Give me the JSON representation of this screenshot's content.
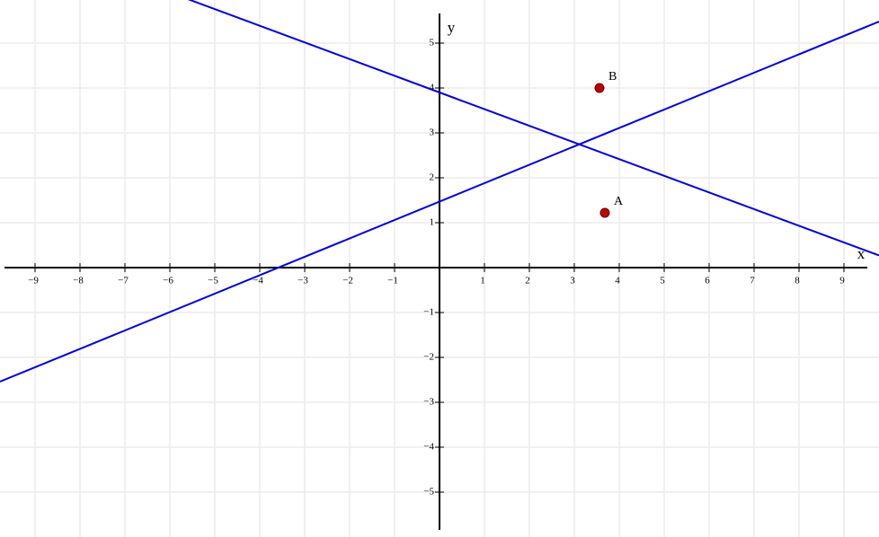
{
  "chart_data": {
    "type": "line",
    "x_label": "x",
    "y_label": "y",
    "xlim": [
      -9.78,
      9.78
    ],
    "ylim": [
      -6,
      5.96
    ],
    "xticks": [
      {
        "value": -9,
        "label": "−9"
      },
      {
        "value": -8,
        "label": "−8"
      },
      {
        "value": -7,
        "label": "−7"
      },
      {
        "value": -6,
        "label": "−6"
      },
      {
        "value": -5,
        "label": "−5"
      },
      {
        "value": -4,
        "label": "−4"
      },
      {
        "value": -3,
        "label": "−3"
      },
      {
        "value": -2,
        "label": "−2"
      },
      {
        "value": -1,
        "label": "−1"
      },
      1,
      2,
      3,
      4,
      5,
      6,
      7,
      8,
      9
    ],
    "yticks": [
      {
        "value": -5,
        "label": "−5"
      },
      {
        "value": -4,
        "label": "−4"
      },
      {
        "value": -3,
        "label": "−3"
      },
      {
        "value": -2,
        "label": "−2"
      },
      {
        "value": -1,
        "label": "−1"
      },
      1,
      2,
      3,
      4,
      5
    ],
    "grid": true,
    "series": [
      {
        "color": "#0000dd",
        "x": [
          -9.78,
          9.78
        ],
        "values": [
          -2.54,
          5.48
        ]
      },
      {
        "color": "#0000dd",
        "x": [
          -5.6,
          9.78
        ],
        "values": [
          5.98,
          0.27
        ]
      }
    ],
    "points": {
      "labels": [
        "A",
        "B"
      ],
      "x": [
        3.68,
        3.56
      ],
      "values": [
        1.22,
        4.0
      ],
      "color": "#c00000"
    }
  }
}
